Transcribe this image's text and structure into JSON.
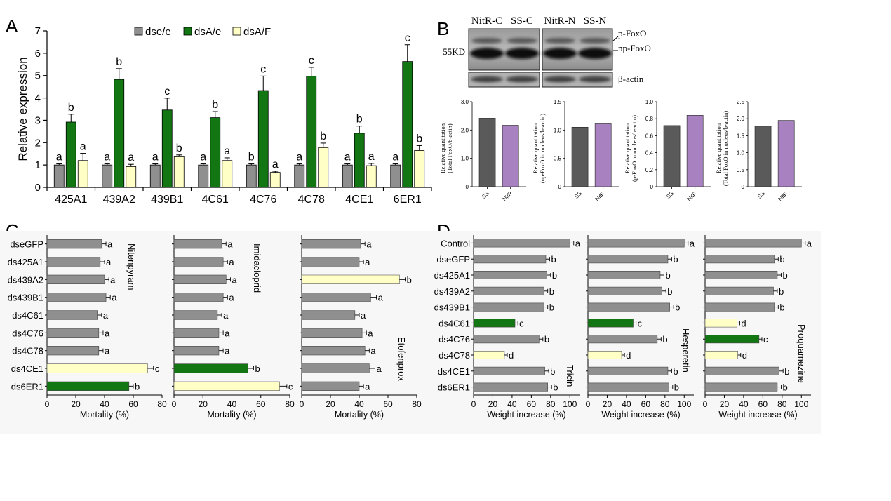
{
  "colors": {
    "grey": "#8f8f8f",
    "green": "#127612",
    "cream": "#ffffc6",
    "dark": "#5a5a5a",
    "purple": "#a882c0",
    "axis": "#000000"
  },
  "panel_labels": {
    "a": "A",
    "b": "B",
    "c": "C",
    "d": "D"
  },
  "chart_data": [
    {
      "id": "A",
      "type": "bar",
      "categories": [
        "425A1",
        "439A2",
        "439B1",
        "4C61",
        "4C76",
        "4C78",
        "4CE1",
        "6ER1"
      ],
      "series": [
        {
          "name": "dse/e",
          "color_key": "grey",
          "values": [
            1.0,
            1.0,
            1.0,
            1.0,
            1.0,
            1.0,
            1.0,
            1.0
          ],
          "errors": [
            0.05,
            0.05,
            0.05,
            0.05,
            0.05,
            0.05,
            0.05,
            0.05
          ],
          "letters": [
            "a",
            "a",
            "a",
            "a",
            "b",
            "a",
            "a",
            "a"
          ]
        },
        {
          "name": "dsA/e",
          "color_key": "green",
          "values": [
            2.92,
            4.83,
            3.46,
            3.12,
            4.33,
            4.97,
            2.42,
            5.63
          ],
          "errors": [
            0.35,
            0.48,
            0.53,
            0.27,
            0.65,
            0.4,
            0.32,
            0.75
          ],
          "letters": [
            "b",
            "b",
            "c",
            "b",
            "c",
            "c",
            "b",
            "c"
          ]
        },
        {
          "name": "dsA/F",
          "color_key": "cream",
          "values": [
            1.2,
            0.93,
            1.37,
            1.2,
            0.67,
            1.78,
            0.97,
            1.65
          ],
          "errors": [
            0.32,
            0.1,
            0.08,
            0.12,
            0.05,
            0.2,
            0.1,
            0.22
          ],
          "letters": [
            "a",
            "a",
            "b",
            "a",
            "a",
            "b",
            "a",
            "b"
          ]
        }
      ],
      "ylabel": "Relative expression",
      "ylim": [
        0,
        7
      ],
      "yticks": [
        0,
        1,
        2,
        3,
        4,
        5,
        6,
        7
      ],
      "legend": "top"
    },
    {
      "id": "B",
      "type": "blot",
      "lanes": [
        "NitR-C",
        "SS-C",
        "NitR-N",
        "SS-N"
      ],
      "marker": "55KD",
      "band_labels": [
        "p-FoxO",
        "np-FoxO"
      ],
      "loading_label": "β-actin"
    },
    {
      "id": "B1",
      "type": "bar",
      "categories": [
        "SS",
        "NitR"
      ],
      "values": [
        2.42,
        2.17
      ],
      "ylim": [
        0,
        3.0
      ],
      "yticks": [
        0,
        1.0,
        2.0,
        3.0
      ],
      "ylabel_lines": [
        "Relative quantitation",
        "(Total FoxO/b-actin)"
      ]
    },
    {
      "id": "B2",
      "type": "bar",
      "categories": [
        "SS",
        "NitR"
      ],
      "values": [
        1.05,
        1.11
      ],
      "ylim": [
        0,
        1.5
      ],
      "yticks": [
        0,
        0.5,
        1.0,
        1.5
      ],
      "ylabel_lines": [
        "Relative quantitation",
        "(np-FoxO in nucleus/b-actin)"
      ]
    },
    {
      "id": "B3",
      "type": "bar",
      "categories": [
        "SS",
        "NitR"
      ],
      "values": [
        0.72,
        0.84
      ],
      "ylim": [
        0,
        1.0
      ],
      "yticks": [
        0,
        0.2,
        0.4,
        0.6,
        0.8,
        1.0
      ],
      "ylabel_lines": [
        "Relative quantitation",
        "(p-FoxO in nucleus/b-actin)"
      ]
    },
    {
      "id": "B4",
      "type": "bar",
      "categories": [
        "SS",
        "NitR"
      ],
      "values": [
        1.78,
        1.95
      ],
      "ylim": [
        0,
        2.5
      ],
      "yticks": [
        0,
        0.5,
        1.0,
        1.5,
        2.0,
        2.5
      ],
      "ylabel_lines": [
        "Relative quantitation",
        "(Total FoxO in nucleus/b-actin)"
      ]
    },
    {
      "id": "C",
      "type": "bar",
      "orientation": "horizontal",
      "categories": [
        "dseGFP",
        "ds425A1",
        "ds439A2",
        "ds439B1",
        "ds4C61",
        "ds4C76",
        "ds4C78",
        "ds4CE1",
        "ds6ER1"
      ],
      "xlabel": "Mortality (%)",
      "xlim": [
        0,
        80
      ],
      "xticks": [
        0,
        20,
        40,
        60,
        80
      ],
      "subplots": [
        {
          "name": "Nitenpyram",
          "values": [
            38,
            37,
            40,
            41,
            35,
            36,
            36,
            70,
            57
          ],
          "errors": [
            3,
            3,
            3,
            3,
            3,
            3,
            3,
            4,
            3
          ],
          "letters": [
            "a",
            "a",
            "a",
            "a",
            "a",
            "a",
            "a",
            "c",
            "b"
          ],
          "color_keys": [
            "grey",
            "grey",
            "grey",
            "grey",
            "grey",
            "grey",
            "grey",
            "cream",
            "green"
          ]
        },
        {
          "name": "Imidacloprid",
          "values": [
            33,
            34,
            36,
            34,
            30,
            31,
            31,
            51,
            73
          ],
          "errors": [
            3,
            3,
            3,
            3,
            3,
            3,
            3,
            4,
            5
          ],
          "letters": [
            "a",
            "a",
            "a",
            "a",
            "a",
            "a",
            "a",
            "b",
            "c"
          ],
          "color_keys": [
            "grey",
            "grey",
            "grey",
            "grey",
            "grey",
            "grey",
            "grey",
            "green",
            "cream"
          ]
        },
        {
          "name": "Etofenprox",
          "values": [
            41,
            40,
            68,
            48,
            37,
            42,
            44,
            47,
            40
          ],
          "errors": [
            3,
            3,
            4,
            4,
            3,
            3,
            3,
            4,
            3
          ],
          "letters": [
            "a",
            "a",
            "b",
            "a",
            "a",
            "a",
            "a",
            "a",
            "a"
          ],
          "color_keys": [
            "grey",
            "grey",
            "cream",
            "grey",
            "grey",
            "grey",
            "grey",
            "grey",
            "grey"
          ]
        }
      ]
    },
    {
      "id": "D",
      "type": "bar",
      "orientation": "horizontal",
      "categories": [
        "Control",
        "dseGFP",
        "ds425A1",
        "ds439A2",
        "ds439B1",
        "ds4C61",
        "ds4C76",
        "ds4C78",
        "ds4CE1",
        "ds6ER1"
      ],
      "xlabel": "Weight increase (%)",
      "xlim": [
        0,
        110
      ],
      "xticks": [
        0,
        20,
        40,
        60,
        80,
        100
      ],
      "subplots": [
        {
          "name": "Tricin",
          "values": [
            100,
            75,
            76,
            73,
            73,
            43,
            68,
            32,
            74,
            77
          ],
          "errors": [
            4,
            4,
            4,
            4,
            4,
            3,
            4,
            3,
            4,
            4
          ],
          "letters": [
            "a",
            "b",
            "b",
            "b",
            "b",
            "c",
            "b",
            "d",
            "b",
            "b"
          ],
          "color_keys": [
            "grey",
            "grey",
            "grey",
            "grey",
            "grey",
            "green",
            "grey",
            "cream",
            "grey",
            "grey"
          ]
        },
        {
          "name": "Hesperetin",
          "values": [
            100,
            83,
            75,
            77,
            85,
            47,
            72,
            35,
            83,
            84
          ],
          "errors": [
            4,
            4,
            4,
            4,
            4,
            3,
            4,
            3,
            4,
            4
          ],
          "letters": [
            "a",
            "b",
            "b",
            "b",
            "b",
            "c",
            "b",
            "d",
            "b",
            "b"
          ],
          "color_keys": [
            "grey",
            "grey",
            "grey",
            "grey",
            "grey",
            "green",
            "grey",
            "cream",
            "grey",
            "grey"
          ]
        },
        {
          "name": "Proquamezine",
          "values": [
            100,
            72,
            75,
            71,
            72,
            33,
            56,
            34,
            77,
            75
          ],
          "errors": [
            4,
            4,
            4,
            4,
            4,
            3,
            3,
            3,
            4,
            4
          ],
          "letters": [
            "a",
            "b",
            "b",
            "b",
            "b",
            "d",
            "c",
            "d",
            "b",
            "b"
          ],
          "color_keys": [
            "grey",
            "grey",
            "grey",
            "grey",
            "grey",
            "cream",
            "green",
            "cream",
            "grey",
            "grey"
          ]
        }
      ]
    }
  ]
}
